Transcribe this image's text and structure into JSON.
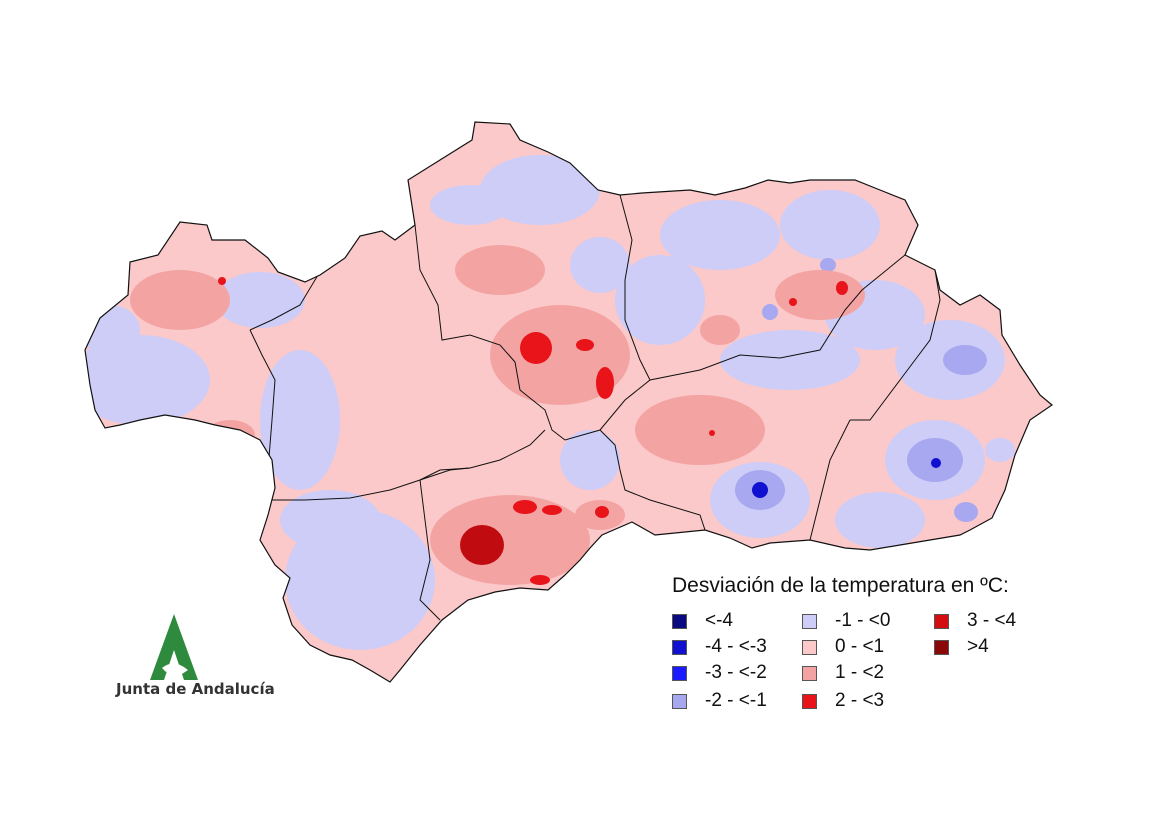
{
  "legend": {
    "title": "Desviación de la temperatura en ºC:",
    "items": [
      {
        "label": "<-4",
        "color": "#0a0a80"
      },
      {
        "label": "-4 - <-3",
        "color": "#1010d0"
      },
      {
        "label": "-3 - <-2",
        "color": "#1a1aff"
      },
      {
        "label": "-2 - <-1",
        "color": "#a8a8f0"
      },
      {
        "label": "-1 - <0",
        "color": "#cdcdf8"
      },
      {
        "label": "0 - <1",
        "color": "#fbc9c9"
      },
      {
        "label": "1 - <2",
        "color": "#f4a3a3"
      },
      {
        "label": "2 - <3",
        "color": "#e8141a"
      },
      {
        "label": "3 - <4",
        "color": "#d40d10"
      },
      {
        "label": ">4",
        "color": "#8a0808"
      }
    ]
  },
  "logo": {
    "text": "Junta de Andalucía",
    "icon": "junta-andalucia-logo-icon",
    "color": "#2e8b3e"
  },
  "map": {
    "region": "Andalucía",
    "base_color": "#fbc9c9",
    "border_color": "#111111"
  }
}
